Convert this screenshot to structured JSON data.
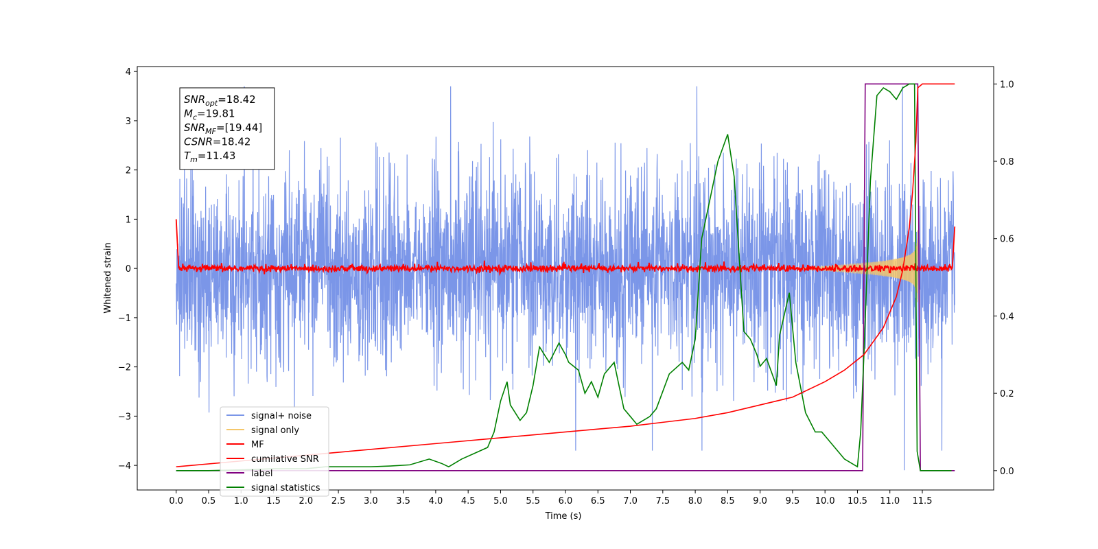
{
  "chart_data": {
    "type": "line",
    "title": "",
    "xlabel": "Time (s)",
    "ylabel": "Whitened strain",
    "xlim": [
      -0.6,
      12.6
    ],
    "ylim_left": [
      -4.5,
      4.1
    ],
    "ylim_right": [
      -0.05,
      1.045
    ],
    "x_ticks": [
      0.0,
      0.5,
      1.0,
      1.5,
      2.0,
      2.5,
      3.0,
      3.5,
      4.0,
      4.5,
      5.0,
      5.5,
      6.0,
      6.5,
      7.0,
      7.5,
      8.0,
      8.5,
      9.0,
      9.5,
      10.0,
      10.5,
      11.0,
      11.5
    ],
    "x_tick_labels": [
      "0.0",
      "0.5",
      "1.0",
      "1.5",
      "2.0",
      "2.5",
      "3.0",
      "3.5",
      "4.0",
      "4.5",
      "5.0",
      "5.5",
      "6.0",
      "6.5",
      "7.0",
      "7.5",
      "8.0",
      "8.5",
      "9.0",
      "9.5",
      "10.0",
      "10.5",
      "11.0",
      "11.5"
    ],
    "y_ticks_left": [
      -4,
      -3,
      -2,
      -1,
      0,
      1,
      2,
      3,
      4
    ],
    "y_tick_labels_left": [
      "−4",
      "−3",
      "−2",
      "−1",
      "0",
      "1",
      "2",
      "3",
      "4"
    ],
    "y_ticks_right": [
      0.0,
      0.2,
      0.4,
      0.6,
      0.8,
      1.0
    ],
    "y_tick_labels_right": [
      "0.0",
      "0.2",
      "0.4",
      "0.6",
      "0.8",
      "1.0"
    ],
    "grid": false,
    "legend_position": "lower-left",
    "annotation": [
      {
        "name": "SNR",
        "sub": "opt",
        "value": "=18.42"
      },
      {
        "name": "M",
        "sub": "c",
        "value": "=19.81"
      },
      {
        "name": "SNR",
        "sub": "MF",
        "value": "=[19.44]"
      },
      {
        "name": "CSNR",
        "sub": "",
        "value": "=18.42"
      },
      {
        "name": "T",
        "sub": "m",
        "value": "=11.43"
      }
    ],
    "series": [
      {
        "name": "signal+ noise",
        "color": "#7b96e8",
        "axis": "left",
        "kind": "noise",
        "x_range": [
          0.0,
          12.0
        ],
        "envelope": 1.6,
        "peak_extreme": 3.7
      },
      {
        "name": "signal only",
        "color": "#f5c76a",
        "axis": "left",
        "kind": "chirp",
        "merger_time": 11.43,
        "x_range": [
          9.5,
          11.43
        ]
      },
      {
        "name": "MF",
        "color": "#ff0000",
        "axis": "left",
        "kind": "matched-filter",
        "x_range": [
          0.0,
          12.0
        ],
        "baseline": 0.0,
        "start_value": 1.0,
        "end_value": 0.85
      },
      {
        "name": "cumilative SNR",
        "color": "#ff0000",
        "axis": "right",
        "x": [
          0.0,
          1.0,
          2.0,
          3.0,
          4.0,
          5.0,
          6.0,
          7.0,
          7.5,
          8.0,
          8.5,
          9.0,
          9.5,
          10.0,
          10.3,
          10.6,
          10.9,
          11.1,
          11.2,
          11.3,
          11.35,
          11.4,
          11.43,
          11.5,
          12.0
        ],
        "y": [
          0.01,
          0.025,
          0.04,
          0.055,
          0.07,
          0.085,
          0.1,
          0.115,
          0.125,
          0.135,
          0.15,
          0.17,
          0.19,
          0.23,
          0.26,
          0.3,
          0.37,
          0.45,
          0.52,
          0.63,
          0.72,
          0.85,
          0.99,
          1.0,
          1.0
        ]
      },
      {
        "name": "label",
        "color": "#800080",
        "axis": "right",
        "x": [
          0.0,
          10.58,
          10.62,
          11.43,
          11.47,
          12.0
        ],
        "y": [
          0.0,
          0.0,
          1.0,
          1.0,
          0.0,
          0.0
        ]
      },
      {
        "name": "signal statistics",
        "color": "#008000",
        "axis": "right",
        "x": [
          0.0,
          0.5,
          1.0,
          1.5,
          2.0,
          2.3,
          2.5,
          3.0,
          3.3,
          3.6,
          3.9,
          4.1,
          4.2,
          4.4,
          4.6,
          4.8,
          4.9,
          5.0,
          5.1,
          5.15,
          5.3,
          5.4,
          5.5,
          5.6,
          5.75,
          5.9,
          6.0,
          6.05,
          6.2,
          6.3,
          6.4,
          6.5,
          6.6,
          6.75,
          6.9,
          7.0,
          7.1,
          7.3,
          7.4,
          7.6,
          7.8,
          7.9,
          8.0,
          8.1,
          8.2,
          8.35,
          8.5,
          8.6,
          8.75,
          8.85,
          8.95,
          9.0,
          9.1,
          9.25,
          9.3,
          9.45,
          9.55,
          9.7,
          9.85,
          9.95,
          10.1,
          10.3,
          10.5,
          10.55,
          10.6,
          10.7,
          10.8,
          10.9,
          11.0,
          11.1,
          11.2,
          11.3,
          11.38,
          11.42,
          11.47,
          11.6,
          11.8,
          11.95
        ],
        "y": [
          0.0,
          0.0,
          0.002,
          0.005,
          0.005,
          0.01,
          0.01,
          0.01,
          0.012,
          0.015,
          0.03,
          0.018,
          0.01,
          0.03,
          0.045,
          0.06,
          0.1,
          0.18,
          0.23,
          0.17,
          0.13,
          0.15,
          0.22,
          0.32,
          0.28,
          0.33,
          0.3,
          0.28,
          0.26,
          0.2,
          0.23,
          0.19,
          0.25,
          0.28,
          0.16,
          0.14,
          0.12,
          0.14,
          0.16,
          0.25,
          0.28,
          0.26,
          0.34,
          0.6,
          0.68,
          0.8,
          0.87,
          0.76,
          0.36,
          0.34,
          0.3,
          0.27,
          0.29,
          0.22,
          0.35,
          0.46,
          0.28,
          0.15,
          0.1,
          0.1,
          0.07,
          0.03,
          0.01,
          0.1,
          0.3,
          0.75,
          0.97,
          0.99,
          0.98,
          0.96,
          0.99,
          1.0,
          1.0,
          0.05,
          0.0,
          0.0,
          0.0,
          0.0
        ]
      }
    ]
  }
}
